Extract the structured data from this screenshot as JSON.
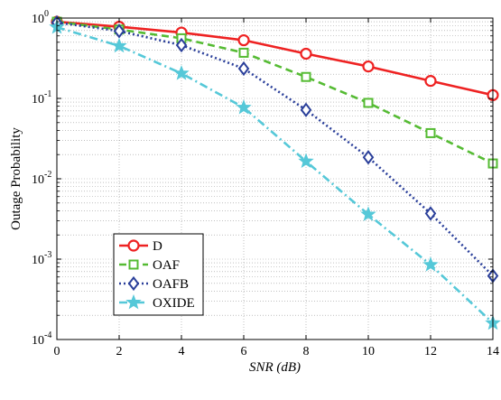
{
  "chart_data": {
    "type": "line",
    "xlabel": "SNR (dB)",
    "xlabel_base": "SNR",
    "xlabel_unit": " (dB)",
    "ylabel": "Outage Probability",
    "xlim": [
      0,
      14
    ],
    "ylim": [
      0.0001,
      1
    ],
    "yscale": "log",
    "grid": true,
    "legend_position": "bottom-left",
    "x_ticks": [
      "0",
      "2",
      "4",
      "6",
      "8",
      "10",
      "12",
      "14"
    ],
    "y_ticks": [
      {
        "base": "10",
        "exp": "0"
      },
      {
        "base": "10",
        "exp": "-1"
      },
      {
        "base": "10",
        "exp": "-2"
      },
      {
        "base": "10",
        "exp": "-3"
      },
      {
        "base": "10",
        "exp": "-4"
      }
    ],
    "x": [
      0,
      2,
      4,
      6,
      8,
      10,
      12,
      14
    ],
    "series": [
      {
        "name": "D",
        "color": "#ee2222",
        "marker": "circle",
        "dash": "none",
        "values": [
          0.9,
          0.78,
          0.66,
          0.53,
          0.36,
          0.25,
          0.165,
          0.11
        ]
      },
      {
        "name": "OAF",
        "color": "#55bb33",
        "marker": "square",
        "dash": "8,5",
        "values": [
          0.9,
          0.72,
          0.56,
          0.37,
          0.185,
          0.088,
          0.037,
          0.0155
        ]
      },
      {
        "name": "OAFB",
        "color": "#2a3f9a",
        "marker": "diamond",
        "dash": "2,3",
        "values": [
          0.88,
          0.69,
          0.46,
          0.235,
          0.072,
          0.0185,
          0.0037,
          0.00062
        ]
      },
      {
        "name": "OXIDE",
        "color": "#55c8d8",
        "marker": "star",
        "dash": "9,4,2,4",
        "values": [
          0.77,
          0.45,
          0.205,
          0.077,
          0.0165,
          0.0036,
          0.00085,
          0.00016
        ]
      }
    ]
  }
}
